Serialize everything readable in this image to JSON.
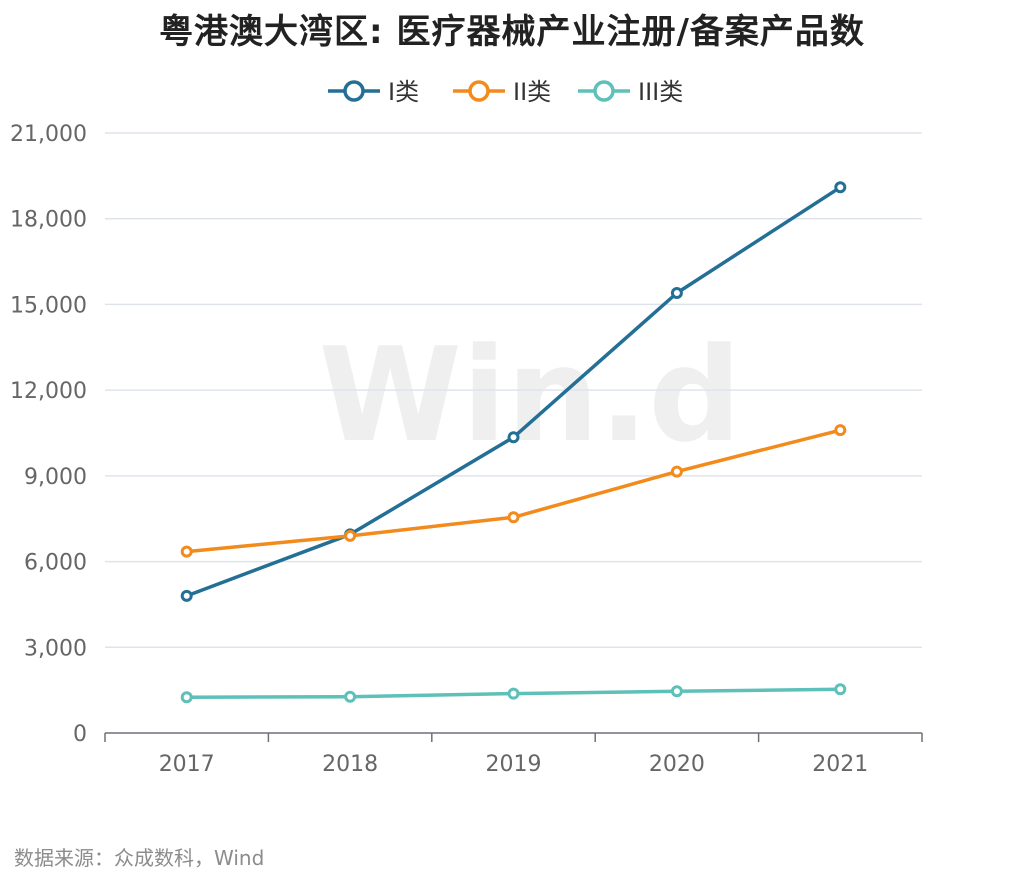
{
  "title": "粤港澳大湾区: 医疗器械产业注册/备案产品数",
  "source": "数据来源：众成数科，Wind",
  "watermark": "Win.d",
  "chart_data": {
    "type": "line",
    "title": "粤港澳大湾区: 医疗器械产业注册/备案产品数",
    "categories": [
      "2017",
      "2018",
      "2019",
      "2020",
      "2021"
    ],
    "ylim": [
      0,
      21000
    ],
    "yticks": [
      0,
      3000,
      6000,
      9000,
      12000,
      15000,
      18000,
      21000
    ],
    "ytick_labels": [
      "0",
      "3,000",
      "6,000",
      "9,000",
      "12,000",
      "15,000",
      "18,000",
      "21,000"
    ],
    "grid": true,
    "legend_position": "top-center",
    "series": [
      {
        "name": "I类",
        "color": "#236f96",
        "values": [
          4800,
          6950,
          10350,
          15400,
          19100
        ]
      },
      {
        "name": "II类",
        "color": "#f28a1c",
        "values": [
          6350,
          6900,
          7550,
          9150,
          10600
        ]
      },
      {
        "name": "III类",
        "color": "#5dc0b9",
        "values": [
          1250,
          1270,
          1380,
          1460,
          1530
        ]
      }
    ]
  }
}
